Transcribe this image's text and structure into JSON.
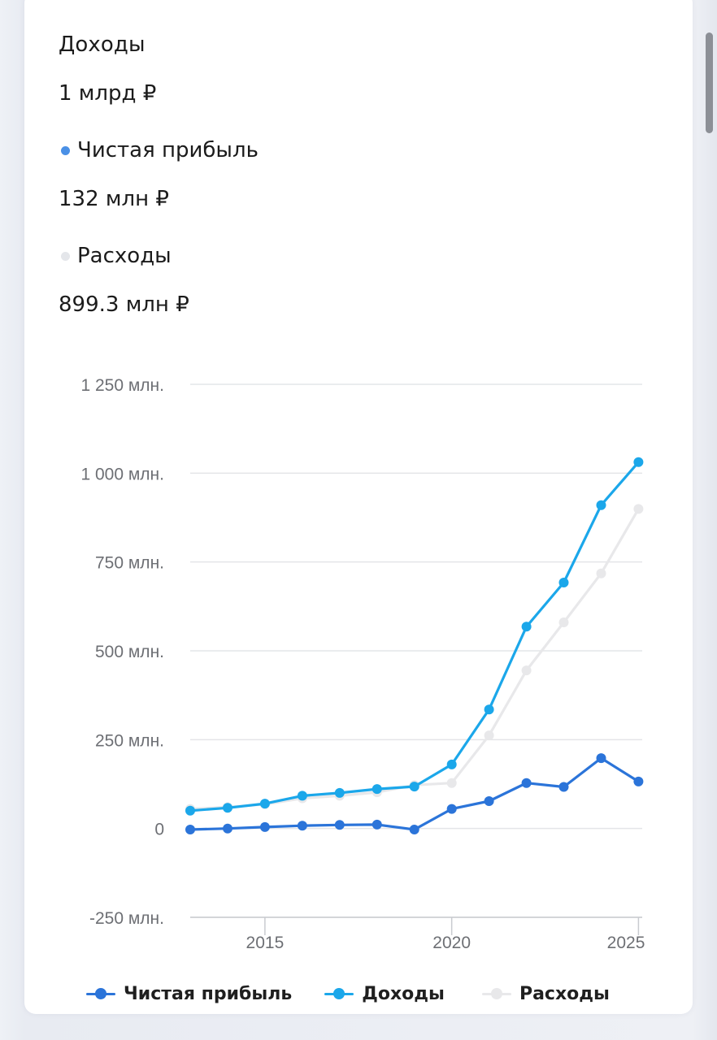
{
  "summary": {
    "title": "Доходы",
    "title_value": "1 млрд ₽",
    "net_profit_label": "Чистая прибыль",
    "net_profit_value": "132 млн ₽",
    "expenses_label": "Расходы",
    "expenses_value": "899.3 млн ₽"
  },
  "colors": {
    "net_profit": "#2b74d9",
    "revenue": "#1ba7ea",
    "expenses": "#e8e8ea",
    "grid": "#e4e5e8",
    "axis_text": "#6d6f74",
    "summary_net_dot": "#4a90e6",
    "summary_expenses_dot": "#e4e6ea"
  },
  "chart_data": {
    "type": "line",
    "y_tick_labels": [
      "1 250 млн.",
      "1 000 млн.",
      "750 млн.",
      "500 млн.",
      "250 млн.",
      "0",
      "-250 млн."
    ],
    "y_ticks": [
      1250,
      1000,
      750,
      500,
      250,
      0,
      -250
    ],
    "x_tick_labels": [
      "2015",
      "2020",
      "2025"
    ],
    "x_ticks": [
      2015,
      2020,
      2025
    ],
    "xlim": [
      2013,
      2025.1
    ],
    "ylim": [
      -250,
      1250
    ],
    "grid": true,
    "legend_position": "bottom",
    "x": [
      2013,
      2014,
      2015,
      2016,
      2017,
      2018,
      2019,
      2020,
      2021,
      2022,
      2023,
      2024,
      2025
    ],
    "series": [
      {
        "name": "Чистая прибыль",
        "color_key": "net_profit",
        "values": [
          -3,
          0,
          4,
          8,
          10,
          11,
          -3,
          55,
          77,
          128,
          117,
          198,
          132
        ]
      },
      {
        "name": "Доходы",
        "color_key": "revenue",
        "values": [
          50,
          58,
          70,
          92,
          100,
          111,
          118,
          180,
          335,
          568,
          692,
          910,
          1031
        ]
      },
      {
        "name": "Расходы",
        "color_key": "expenses",
        "values": [
          55,
          60,
          68,
          85,
          92,
          102,
          122,
          128,
          262,
          445,
          580,
          718,
          899.3
        ]
      }
    ]
  }
}
